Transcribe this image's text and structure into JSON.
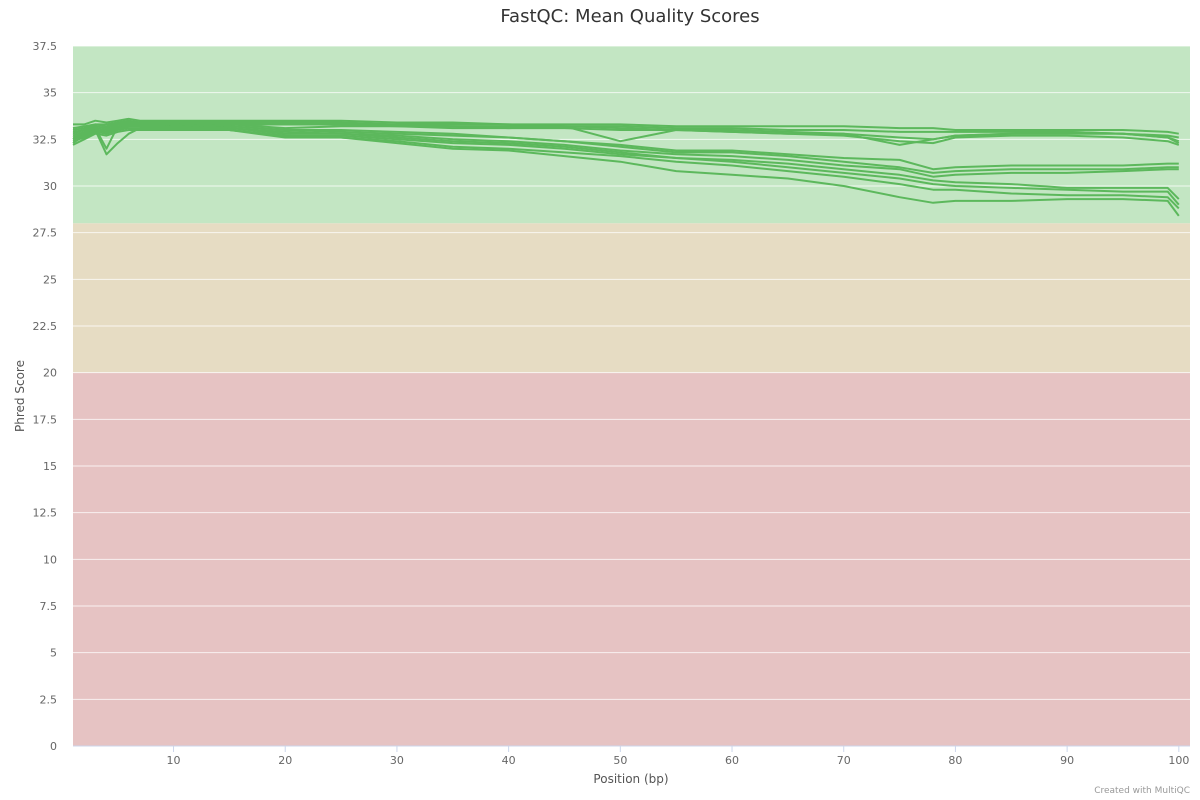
{
  "chart_data": {
    "type": "line",
    "title": "FastQC: Mean Quality Scores",
    "xlabel": "Position (bp)",
    "ylabel": "Phred Score",
    "xlim": [
      1,
      101
    ],
    "ylim": [
      0,
      37.5
    ],
    "x_ticks": [
      10,
      20,
      30,
      40,
      50,
      60,
      70,
      80,
      90,
      100
    ],
    "y_ticks": [
      0,
      2.5,
      5,
      7.5,
      10,
      12.5,
      15,
      17.5,
      20,
      22.5,
      25,
      27.5,
      30,
      32.5,
      35,
      37.5
    ],
    "y_tick_labels": [
      "0",
      "2.5",
      "5",
      "7.5",
      "10",
      "12.5",
      "15",
      "17.5",
      "20",
      "22.5",
      "25",
      "27.5",
      "30",
      "32.5",
      "35",
      "37.5"
    ],
    "bands": [
      {
        "from": 28,
        "to": 37.5,
        "color": "#c3e6c3"
      },
      {
        "from": 20,
        "to": 28,
        "color": "#e6dcc3"
      },
      {
        "from": 0,
        "to": 20,
        "color": "#e6c3c3"
      }
    ],
    "line_color": "#5cb85c",
    "grid": true,
    "legend": "none",
    "x": [
      1,
      2,
      3,
      4,
      5,
      6,
      7,
      8,
      9,
      15,
      20,
      25,
      30,
      35,
      40,
      45,
      50,
      55,
      60,
      65,
      70,
      75,
      78,
      80,
      85,
      90,
      95,
      99,
      100
    ],
    "series": [
      {
        "values": [
          33.3,
          33.3,
          33.5,
          33.4,
          33.5,
          33.6,
          33.5,
          33.5,
          33.5,
          33.5,
          33.5,
          33.5,
          33.4,
          33.4,
          33.3,
          33.3,
          33.3,
          33.2,
          33.2,
          33.2,
          33.2,
          33.1,
          33.1,
          33.0,
          33.0,
          33.0,
          33.0,
          32.9,
          32.8
        ]
      },
      {
        "values": [
          33.1,
          33.2,
          33.3,
          33.3,
          33.4,
          33.5,
          33.4,
          33.4,
          33.4,
          33.4,
          33.4,
          33.4,
          33.3,
          33.3,
          33.3,
          33.2,
          33.2,
          33.1,
          33.1,
          33.0,
          33.0,
          32.9,
          32.9,
          32.9,
          32.9,
          32.9,
          32.8,
          32.7,
          32.6
        ]
      },
      {
        "values": [
          32.9,
          33.0,
          33.2,
          33.1,
          33.3,
          33.4,
          33.3,
          33.3,
          33.3,
          33.3,
          33.3,
          33.3,
          33.3,
          33.2,
          33.2,
          33.2,
          33.1,
          33.0,
          33.0,
          32.9,
          32.8,
          32.2,
          32.5,
          32.7,
          32.8,
          32.8,
          32.8,
          32.6,
          32.4
        ]
      },
      {
        "values": [
          32.5,
          32.8,
          33.1,
          32.0,
          33.2,
          33.3,
          33.3,
          33.3,
          33.3,
          33.3,
          33.1,
          33.2,
          33.2,
          33.1,
          33.1,
          33.1,
          33.0,
          33.0,
          32.9,
          32.8,
          32.8,
          32.6,
          32.5,
          32.7,
          32.8,
          32.9,
          32.8,
          32.6,
          32.3
        ]
      },
      {
        "values": [
          33.0,
          33.1,
          33.3,
          33.2,
          33.4,
          33.5,
          33.4,
          33.4,
          33.4,
          33.3,
          33.3,
          33.3,
          33.2,
          33.2,
          33.1,
          33.2,
          32.4,
          33.0,
          32.9,
          32.8,
          32.7,
          32.4,
          32.3,
          32.6,
          32.7,
          32.7,
          32.6,
          32.4,
          32.2
        ]
      },
      {
        "values": [
          32.3,
          32.7,
          33.0,
          31.7,
          32.3,
          32.8,
          33.1,
          33.2,
          33.2,
          33.2,
          33.0,
          32.9,
          32.8,
          32.7,
          32.6,
          32.4,
          32.2,
          31.9,
          31.9,
          31.7,
          31.5,
          31.4,
          30.9,
          31.0,
          31.1,
          31.1,
          31.1,
          31.2,
          31.2
        ]
      },
      {
        "values": [
          32.8,
          33.0,
          33.2,
          33.1,
          33.3,
          33.4,
          33.3,
          33.3,
          33.3,
          33.2,
          33.0,
          33.0,
          32.9,
          32.8,
          32.6,
          32.4,
          32.1,
          31.8,
          31.8,
          31.6,
          31.3,
          31.0,
          30.7,
          30.8,
          30.9,
          30.9,
          30.9,
          31.0,
          31.0
        ]
      },
      {
        "values": [
          32.6,
          32.8,
          33.0,
          32.9,
          33.1,
          33.2,
          33.2,
          33.2,
          33.2,
          33.1,
          32.8,
          32.8,
          32.7,
          32.5,
          32.4,
          32.2,
          31.9,
          31.7,
          31.6,
          31.4,
          31.1,
          30.9,
          30.5,
          30.6,
          30.7,
          30.7,
          30.8,
          30.9,
          30.9
        ]
      },
      {
        "values": [
          32.7,
          32.9,
          33.1,
          33.0,
          33.2,
          33.3,
          33.3,
          33.2,
          33.2,
          33.1,
          32.9,
          32.8,
          32.6,
          32.4,
          32.3,
          32.1,
          31.8,
          31.5,
          31.4,
          31.2,
          30.9,
          30.6,
          30.3,
          30.2,
          30.1,
          29.9,
          29.9,
          29.9,
          29.3
        ]
      },
      {
        "values": [
          32.4,
          32.6,
          32.9,
          32.8,
          33.0,
          33.1,
          33.1,
          33.1,
          33.1,
          33.0,
          32.7,
          32.7,
          32.5,
          32.3,
          32.2,
          32.0,
          31.7,
          31.5,
          31.3,
          31.0,
          30.7,
          30.4,
          30.1,
          30.0,
          29.9,
          29.8,
          29.7,
          29.7,
          29.0
        ]
      },
      {
        "values": [
          32.2,
          32.5,
          32.8,
          32.7,
          32.9,
          33.0,
          33.0,
          33.0,
          33.0,
          33.0,
          32.6,
          32.6,
          32.4,
          32.1,
          32.0,
          31.8,
          31.6,
          31.3,
          31.1,
          30.8,
          30.5,
          30.1,
          29.8,
          29.8,
          29.6,
          29.5,
          29.5,
          29.4,
          28.8
        ]
      },
      {
        "values": [
          32.5,
          32.7,
          33.0,
          32.9,
          33.1,
          33.2,
          33.2,
          33.2,
          33.2,
          33.0,
          32.7,
          32.6,
          32.3,
          32.0,
          31.9,
          31.6,
          31.3,
          30.8,
          30.6,
          30.4,
          30.0,
          29.4,
          29.1,
          29.2,
          29.2,
          29.3,
          29.3,
          29.2,
          28.4
        ]
      }
    ]
  },
  "credit": "Created with MultiQC"
}
